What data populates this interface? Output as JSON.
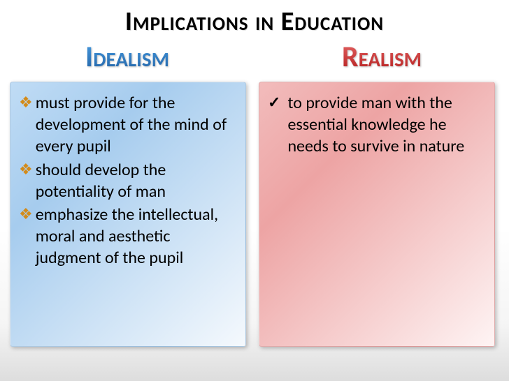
{
  "title": "Implications in Education",
  "headings": {
    "left": "Idealism",
    "right": "Realism"
  },
  "left_box": {
    "gradient_from": "#c0dcf5",
    "gradient_to": "#f5f9fd",
    "bullet_glyph": "❖",
    "bullet_color": "#d38b1a",
    "items": [
      "must provide for the development of the mind of every pupil",
      "should develop the potentiality of man",
      "emphasize the intellectual, moral and aesthetic judgment of the pupil"
    ]
  },
  "right_box": {
    "gradient_from": "#f2bcbc",
    "gradient_to": "#fef4f4",
    "bullet_glyph": "✓",
    "bullet_color": "#000000",
    "items": [
      "to provide man with the essential knowledge he needs to survive in nature"
    ]
  },
  "heading_colors": {
    "left": "#2a7bc4",
    "right": "#cc2a2a"
  }
}
